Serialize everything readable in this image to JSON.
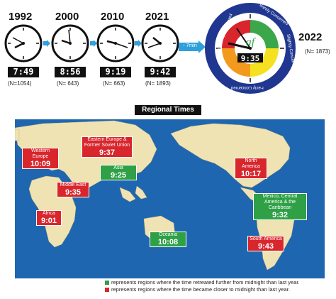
{
  "clocks": [
    {
      "year": "1992",
      "time": "7:49",
      "n": "(N=1054)"
    },
    {
      "year": "2000",
      "time": "8:56",
      "n": "(N= 643)"
    },
    {
      "year": "2010",
      "time": "9:19",
      "n": "(N= 663)"
    },
    {
      "year": "2021",
      "time": "9:42",
      "n": "(N= 1893)"
    }
  ],
  "arrow_label": "- 7min",
  "main_clock": {
    "year": "2022",
    "n": "(N= 1873)",
    "time": "9:35",
    "ring_labels": [
      "Barely Concerned",
      "Slightly Concerned",
      "Fairly Concerned",
      "Extremely Concerned"
    ],
    "colors": {
      "red": "#d8262c",
      "orange": "#f39a1e",
      "yellow": "#f5e11f",
      "green": "#3aa74a",
      "navy": "#1f3790"
    }
  },
  "section_title": "Regional Times",
  "regions": [
    {
      "name": "Western Europe",
      "time": "10:09",
      "status": "red"
    },
    {
      "name": "Eastern Europe & Former Soviet Union",
      "time": "9:37",
      "status": "red"
    },
    {
      "name": "Middle East",
      "time": "9:35",
      "status": "red"
    },
    {
      "name": "Asia",
      "time": "9:25",
      "status": "green"
    },
    {
      "name": "Africa",
      "time": "9:01",
      "status": "red"
    },
    {
      "name": "Oceania",
      "time": "10:08",
      "status": "green"
    },
    {
      "name": "North America",
      "time": "10:17",
      "status": "red"
    },
    {
      "name": "Mexico, Central America & the Caribbean",
      "time": "9:32",
      "status": "green"
    },
    {
      "name": "South America",
      "time": "9:43",
      "status": "red"
    }
  ],
  "legend": [
    {
      "color": "#2fa046",
      "text": "represents regions where the time retreated further from midnight than last year."
    },
    {
      "color": "#d8262c",
      "text": "represents regions where the time became closer to midnight than last year."
    }
  ]
}
